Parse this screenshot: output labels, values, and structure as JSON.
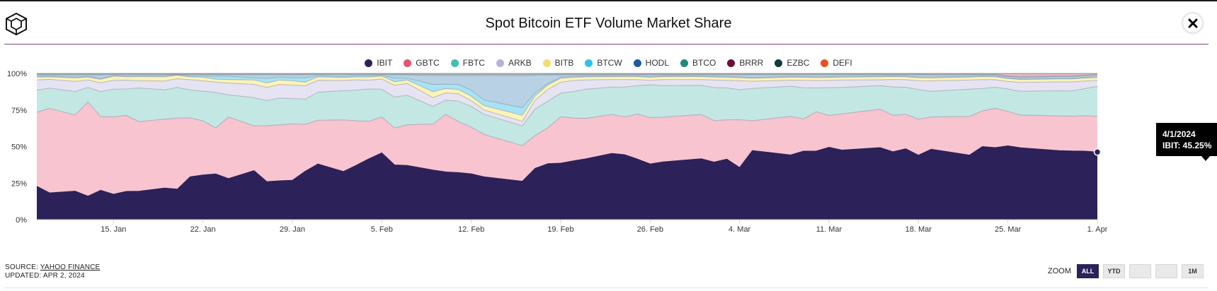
{
  "title": "Spot Bitcoin ETF Volume Market Share",
  "source_prefix": "SOURCE:",
  "source_name": "YAHOO FINANCE",
  "updated": "UPDATED: APR 2, 2024",
  "zoom": {
    "label": "ZOOM",
    "buttons": [
      "ALL",
      "YTD",
      "",
      "",
      "1M"
    ],
    "active": "ALL"
  },
  "tooltip": {
    "date": "4/1/2024",
    "text": "IBIT: 45.25%"
  },
  "chart_data": {
    "type": "area",
    "stacking": "percent",
    "title": "Spot Bitcoin ETF Volume Market Share",
    "y_ticks": [
      "0%",
      "25%",
      "50%",
      "75%",
      "100%"
    ],
    "ylim": [
      0,
      100
    ],
    "x_ticks": [
      {
        "day": 6,
        "label": "15. Jan"
      },
      {
        "day": 13,
        "label": "22. Jan"
      },
      {
        "day": 20,
        "label": "29. Jan"
      },
      {
        "day": 27,
        "label": "5. Feb"
      },
      {
        "day": 34,
        "label": "12. Feb"
      },
      {
        "day": 41,
        "label": "19. Feb"
      },
      {
        "day": 48,
        "label": "26. Feb"
      },
      {
        "day": 55,
        "label": "4. Mar"
      },
      {
        "day": 62,
        "label": "11. Mar"
      },
      {
        "day": 69,
        "label": "18. Mar"
      },
      {
        "day": 76,
        "label": "25. Mar"
      },
      {
        "day": 83,
        "label": "1. Apr"
      }
    ],
    "x_days": [
      0,
      1,
      3,
      4,
      5,
      6,
      7,
      8,
      10,
      11,
      12,
      13,
      14,
      15,
      17,
      18,
      19,
      20,
      21,
      22,
      24,
      25,
      26,
      27,
      28,
      29,
      31,
      32,
      33,
      34,
      35,
      38,
      39,
      40,
      41,
      42,
      43,
      45,
      46,
      47,
      48,
      49,
      52,
      53,
      54,
      55,
      56,
      59,
      60,
      61,
      62,
      63,
      66,
      67,
      68,
      69,
      70,
      73,
      74,
      75,
      76,
      77,
      80,
      81,
      82,
      83
    ],
    "grid": true,
    "legend_position": "top-center",
    "series": [
      {
        "name": "IBIT",
        "color": "#2c2159",
        "values": [
          22.8,
          18.5,
          19.5,
          16.1,
          20.1,
          17.4,
          19.3,
          19.4,
          21.6,
          20.9,
          29.2,
          30.2,
          31.0,
          27.8,
          33.2,
          25.7,
          26.0,
          26.5,
          32.6,
          37.7,
          33.0,
          37.2,
          41.6,
          45.6,
          37.2,
          36.8,
          33.9,
          33.2,
          32.3,
          31.2,
          29.9,
          25.3,
          35.0,
          37.9,
          35.9,
          37.6,
          39.6,
          43.9,
          43.5,
          40.5,
          37.4,
          38.6,
          41.8,
          38.4,
          39.7,
          34.7,
          47.2,
          43.1,
          46.1,
          46.2,
          49.5,
          47.3,
          49.0,
          45.7,
          47.2,
          43.6,
          46.8,
          42.8,
          49.0,
          48.1,
          49.4,
          48.7,
          46.7,
          46.1,
          45.6,
          45.25
        ]
      },
      {
        "name": "GBTC",
        "color": "#f7c4cf",
        "values": [
          50.7,
          58.4,
          52.1,
          64.4,
          50.5,
          52.9,
          51.9,
          47.5,
          47.1,
          48.7,
          40.3,
          36.6,
          31.2,
          41.6,
          30.3,
          37.8,
          37.5,
          38.0,
          31.6,
          29.6,
          35.4,
          30.6,
          25.6,
          24.5,
          25.1,
          27.6,
          31.4,
          40.0,
          35.1,
          31.8,
          29.7,
          23.4,
          22.4,
          24.4,
          29.5,
          27.4,
          26.3,
          25.9,
          25.3,
          30.1,
          31.1,
          30.0,
          30.4,
          27.7,
          25.7,
          31.8,
          20.4,
          25.8,
          21.7,
          26.5,
          21.8,
          24.6,
          26.1,
          24.6,
          23.0,
          24.4,
          21.5,
          25.7,
          23.9,
          26.3,
          23.1,
          22.3,
          23.4,
          23.4,
          23.6,
          23.9
        ]
      },
      {
        "name": "FBTC",
        "color": "#c3e8e3",
        "values": [
          15.0,
          14.0,
          16.0,
          10.0,
          17.0,
          19.0,
          18.0,
          23.0,
          20.0,
          21.0,
          19.0,
          20.0,
          24.0,
          15.0,
          19.0,
          17.0,
          18.0,
          17.0,
          17.0,
          19.0,
          20.0,
          21.0,
          22.0,
          19.0,
          21.0,
          20.0,
          12.0,
          10.0,
          14.0,
          14.0,
          14.0,
          13.0,
          18.0,
          18.0,
          15.0,
          17.0,
          19.0,
          18.0,
          20.0,
          19.0,
          22.0,
          21.0,
          20.0,
          22.0,
          21.0,
          20.0,
          22.0,
          20.0,
          21.0,
          16.0,
          19.0,
          18.0,
          16.0,
          19.0,
          18.0,
          20.0,
          17.0,
          18.0,
          15.0,
          14.0,
          15.0,
          16.0,
          17.0,
          17.0,
          18.0,
          20.0
        ]
      },
      {
        "name": "ARKB",
        "color": "#e6e4f2",
        "values": [
          7.0,
          6.0,
          7.0,
          5.0,
          6.0,
          6.0,
          6.0,
          5.0,
          6.0,
          6.0,
          7.0,
          7.0,
          7.0,
          8.0,
          9.0,
          9.0,
          9.0,
          9.0,
          9.0,
          8.0,
          7.0,
          7.0,
          6.0,
          7.0,
          8.0,
          8.0,
          6.0,
          5.0,
          5.0,
          4.0,
          3.0,
          3.0,
          6.0,
          8.0,
          7.0,
          7.0,
          6.0,
          5.0,
          5.0,
          4.0,
          3.0,
          4.0,
          4.0,
          5.0,
          5.0,
          6.0,
          5.0,
          4.0,
          5.0,
          5.0,
          5.0,
          5.0,
          4.0,
          5.0,
          5.0,
          6.0,
          7.0,
          6.0,
          6.0,
          5.0,
          5.0,
          6.0,
          6.0,
          6.0,
          5.0,
          4.0
        ]
      },
      {
        "name": "BITB",
        "color": "#fbf3b8",
        "values": [
          2.0,
          1.8,
          2.4,
          2.0,
          2.4,
          2.8,
          2.4,
          2.8,
          3.0,
          2.4,
          2.0,
          2.4,
          2.0,
          2.4,
          3.0,
          3.0,
          3.0,
          3.0,
          2.4,
          2.4,
          2.0,
          2.0,
          2.2,
          2.0,
          2.4,
          2.4,
          4.0,
          3.0,
          3.0,
          3.0,
          3.0,
          4.0,
          3.0,
          3.0,
          2.5,
          2.0,
          2.0,
          2.0,
          2.0,
          2.0,
          2.0,
          2.0,
          2.0,
          2.0,
          2.0,
          2.0,
          2.0,
          2.0,
          2.0,
          2.0,
          2.0,
          2.0,
          2.0,
          2.0,
          2.0,
          2.0,
          2.0,
          2.0,
          2.0,
          2.0,
          2.0,
          2.0,
          2.0,
          2.0,
          2.0,
          2.0
        ]
      },
      {
        "name": "BTCW",
        "color": "#a7e3f5",
        "values": [
          0.5,
          0.5,
          0.5,
          0.5,
          0.5,
          0.5,
          0.4,
          0.4,
          0.4,
          0.4,
          0.5,
          0.8,
          2.0,
          2.2,
          1.5,
          3.0,
          2.0,
          2.0,
          3.0,
          0.8,
          0.8,
          0.8,
          0.8,
          0.6,
          2.4,
          1.2,
          5.0,
          3.0,
          3.5,
          4.0,
          4.0,
          5.0,
          2.0,
          0.8,
          0.6,
          0.6,
          0.5,
          0.5,
          0.5,
          0.5,
          0.5,
          0.5,
          0.5,
          0.5,
          0.5,
          0.5,
          0.5,
          0.5,
          0.5,
          0.5,
          0.5,
          0.5,
          0.5,
          0.5,
          0.5,
          0.5,
          0.5,
          0.5,
          0.5,
          0.5,
          0.5,
          0.5,
          0.5,
          0.5,
          0.5,
          0.5
        ]
      },
      {
        "name": "HODL",
        "color": "#b8d1e4",
        "values": [
          1.0,
          0.8,
          1.5,
          1.0,
          2.5,
          0.7,
          1.1,
          1.0,
          1.0,
          0.0,
          1.0,
          1.0,
          1.0,
          1.0,
          2.0,
          2.5,
          1.5,
          2.0,
          2.0,
          0.8,
          1.3,
          0.8,
          0.8,
          0.5,
          2.2,
          2.2,
          6.0,
          6.0,
          6.0,
          10.0,
          17.0,
          21.0,
          12.0,
          6.0,
          1.5,
          1.0,
          0.8,
          0.7,
          0.7,
          0.7,
          1.2,
          0.7,
          0.8,
          1.0,
          1.1,
          1.4,
          1.9,
          1.1,
          1.2,
          1.4,
          1.3,
          1.1,
          0.9,
          0.7,
          0.8,
          1.5,
          1.4,
          1.0,
          0.7,
          0.8,
          0.8,
          1.0,
          1.1,
          1.1,
          1.0,
          1.15
        ]
      },
      {
        "name": "BTCO",
        "color": "#9ed7cf",
        "values": [
          0.5,
          0.5,
          0.5,
          0.5,
          0.5,
          0.3,
          0.3,
          0.3,
          0.3,
          0.3,
          0.3,
          0.3,
          0.4,
          0.4,
          0.4,
          0.4,
          0.4,
          0.4,
          0.4,
          0.3,
          0.3,
          0.4,
          0.4,
          0.3,
          0.5,
          0.5,
          0.8,
          0.8,
          0.8,
          0.8,
          0.8,
          0.8,
          0.6,
          0.5,
          0.4,
          0.4,
          0.4,
          0.4,
          0.4,
          0.4,
          0.4,
          0.4,
          0.4,
          0.4,
          0.4,
          0.4,
          0.4,
          0.4,
          0.4,
          0.4,
          0.4,
          0.4,
          0.4,
          0.4,
          0.4,
          0.4,
          0.4,
          0.4,
          0.4,
          0.4,
          0.4,
          0.4,
          0.4,
          0.4,
          0.4,
          0.4
        ]
      },
      {
        "name": "BRRR",
        "color": "#e5b7c5",
        "values": [
          0.3,
          0.3,
          0.3,
          0.3,
          0.3,
          0.2,
          0.2,
          0.2,
          0.3,
          0.3,
          0.3,
          0.3,
          0.3,
          0.3,
          0.3,
          0.3,
          0.3,
          0.3,
          0.3,
          0.2,
          0.2,
          0.2,
          0.2,
          0.2,
          0.3,
          0.3,
          0.5,
          0.5,
          0.5,
          0.5,
          0.5,
          0.5,
          0.4,
          0.3,
          0.3,
          0.3,
          0.3,
          0.3,
          0.3,
          0.3,
          0.3,
          0.3,
          0.3,
          0.3,
          0.3,
          0.3,
          0.3,
          0.3,
          0.3,
          0.3,
          0.3,
          0.3,
          0.3,
          0.3,
          0.3,
          0.3,
          0.4,
          0.3,
          0.3,
          0.3,
          1.5,
          2.0,
          1.5,
          1.5,
          1.0,
          0.4
        ]
      },
      {
        "name": "EZBC",
        "color": "#9fb7b1",
        "values": [
          0.2,
          0.2,
          0.2,
          0.2,
          0.2,
          0.2,
          0.2,
          0.2,
          0.2,
          0.2,
          0.2,
          0.2,
          0.2,
          0.2,
          0.2,
          0.2,
          0.2,
          0.2,
          0.2,
          0.2,
          0.2,
          0.2,
          0.2,
          0.2,
          0.2,
          0.2,
          0.2,
          0.2,
          0.2,
          0.2,
          0.2,
          0.2,
          0.2,
          0.2,
          0.2,
          0.2,
          0.2,
          0.2,
          0.2,
          0.2,
          0.2,
          0.2,
          0.2,
          0.2,
          0.2,
          0.2,
          0.2,
          0.2,
          0.2,
          0.2,
          0.2,
          0.2,
          0.2,
          0.2,
          0.2,
          0.2,
          0.2,
          0.2,
          0.2,
          0.2,
          0.2,
          0.2,
          0.2,
          0.2,
          0.2,
          0.2
        ]
      },
      {
        "name": "DEFI",
        "color": "#f2b8a6",
        "values": [
          0.0,
          0.0,
          0.0,
          0.0,
          0.0,
          0.0,
          0.0,
          0.0,
          0.0,
          0.0,
          0.0,
          0.0,
          0.0,
          0.0,
          0.0,
          0.0,
          0.0,
          0.0,
          0.0,
          0.0,
          0.0,
          0.0,
          0.0,
          0.0,
          0.0,
          0.0,
          0.0,
          0.0,
          0.0,
          0.0,
          0.0,
          0.0,
          0.0,
          0.0,
          0.0,
          0.0,
          0.0,
          0.0,
          0.0,
          0.0,
          0.0,
          0.0,
          0.0,
          0.0,
          0.0,
          0.0,
          0.0,
          0.0,
          0.0,
          0.0,
          0.0,
          0.0,
          0.0,
          0.0,
          0.0,
          0.0,
          0.0,
          0.0,
          0.0,
          0.0,
          0.0,
          0.0,
          0.0,
          0.0,
          0.0,
          0.0
        ]
      }
    ],
    "legend": [
      {
        "name": "IBIT",
        "color": "#2c2159"
      },
      {
        "name": "GBTC",
        "color": "#e4546e"
      },
      {
        "name": "FBTC",
        "color": "#3fbfae"
      },
      {
        "name": "ARKB",
        "color": "#b7b1dd"
      },
      {
        "name": "BITB",
        "color": "#f6dc6e"
      },
      {
        "name": "BTCW",
        "color": "#2ec1ec"
      },
      {
        "name": "HODL",
        "color": "#1b5d9a"
      },
      {
        "name": "BTCO",
        "color": "#1d8a7c"
      },
      {
        "name": "BRRR",
        "color": "#6b0f3a"
      },
      {
        "name": "EZBC",
        "color": "#0f3b3c"
      },
      {
        "name": "DEFI",
        "color": "#e8521e"
      }
    ]
  }
}
